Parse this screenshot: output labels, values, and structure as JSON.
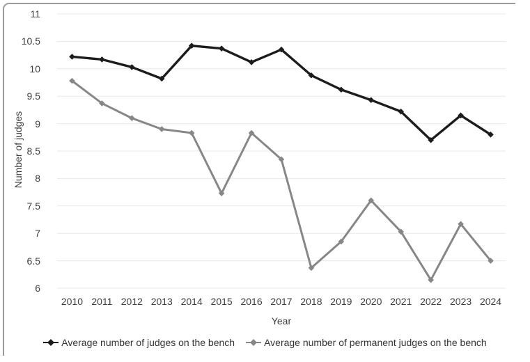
{
  "chart_data": {
    "type": "line",
    "title": "",
    "xlabel": "Year",
    "ylabel": "Number of judges",
    "x": [
      "2010",
      "2011",
      "2012",
      "2013",
      "2014",
      "2015",
      "2016",
      "2017",
      "2018",
      "2019",
      "2020",
      "2021",
      "2022",
      "2023",
      "2024"
    ],
    "ylim": [
      6,
      11
    ],
    "ytick_step": 0.5,
    "grid": true,
    "legend_position": "bottom",
    "marker": "diamond",
    "series": [
      {
        "name": "Average number of judges on the bench",
        "color": "#1c1c1c",
        "values": [
          10.22,
          10.17,
          10.03,
          9.82,
          10.42,
          10.37,
          10.12,
          10.35,
          9.88,
          9.62,
          9.43,
          9.22,
          8.7,
          9.15,
          8.8
        ]
      },
      {
        "name": "Average number of permanent judges on the bench",
        "color": "#878787",
        "values": [
          9.78,
          9.37,
          9.1,
          8.9,
          8.83,
          7.73,
          8.83,
          8.35,
          6.37,
          6.85,
          7.6,
          7.03,
          6.15,
          7.17,
          6.5
        ]
      }
    ]
  },
  "frame": {
    "border_color": "#9b9b9b"
  },
  "colors": {
    "background": "#ffffff",
    "grid": "#e8e8e8",
    "tick_text": "#3e3e3e",
    "legend_text": "#333333"
  }
}
